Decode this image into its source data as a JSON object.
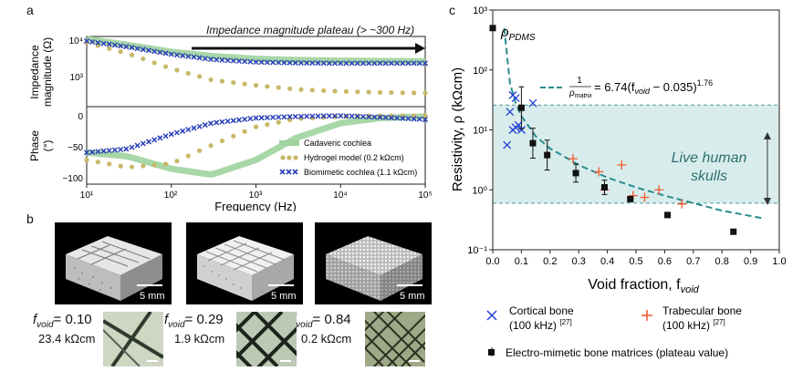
{
  "panel_a": {
    "letter": "a",
    "annotation": "Impedance magnitude plateau (> ~300 Hz)",
    "top_ylabel_line1": "Impedance",
    "top_ylabel_line2": "magnitude (Ω)",
    "bottom_ylabel_line1": "Phase",
    "bottom_ylabel_line2": "(°)",
    "xlabel": "Frequency (Hz)",
    "top_yticks": [
      "10⁴",
      "10³"
    ],
    "bottom_yticks": [
      "0",
      "−50",
      "−100"
    ],
    "xticks": [
      "10¹",
      "10²",
      "10³",
      "10⁴",
      "10⁵"
    ],
    "legend": [
      "Cadaveric cochlea",
      "Hydrogel model (0.2 kΩcm)",
      "Biomimetic cochlea (1.1 kΩcm)"
    ],
    "colors": {
      "cadaveric": "#9fd39f",
      "hydrogel": "#c8b868",
      "biomimetic": "#2a3fb8",
      "arrow": "#111111"
    }
  },
  "panel_b": {
    "letter": "b",
    "scale_label": "5 mm",
    "samples": [
      {
        "fvoid_label": "= 0.10",
        "resistivity": "23.4 kΩcm"
      },
      {
        "fvoid_label": "= 0.29",
        "resistivity": "1.9 kΩcm"
      },
      {
        "fvoid_label": "= 0.84",
        "resistivity": "0.2 kΩcm"
      }
    ],
    "fvoid_symbol": "f",
    "fvoid_sub": "void"
  },
  "panel_c": {
    "letter": "c",
    "rho_pdms": "ρ",
    "rho_pdms_sub": "PDMS",
    "equation_num": "1",
    "equation_den": "ρ",
    "equation_den_sub": "matrix",
    "equation_rhs": "= 6.74(f",
    "equation_rhs_sub": "void",
    "equation_rhs_tail": " − 0.035)",
    "equation_exp": "1.76",
    "shade_label_1": "Live human",
    "shade_label_2": "skulls",
    "ylabel": "Resistivity, ρ (kΩcm)",
    "xlabel": "Void fraction, f",
    "xlabel_sub": "void",
    "yticks": [
      "10³",
      "10²",
      "10¹",
      "10⁰",
      "10⁻¹"
    ],
    "xticks": [
      "0.0",
      "0.1",
      "0.2",
      "0.3",
      "0.4",
      "0.5",
      "0.6",
      "0.7",
      "0.8",
      "0.9",
      "1.0"
    ],
    "legend_cortical_1": "Cortical bone",
    "legend_cortical_2": "(100 kHz)",
    "legend_trabecular_1": "Trabecular bone",
    "legend_trabecular_2": "(100 kHz)",
    "ref": "[27]",
    "legend_matrices": "Electro-mimetic bone matrices (plateau value)",
    "colors": {
      "cortical": "#1f3fd6",
      "trabecular": "#f0582a",
      "matrices": "#111111",
      "fit": "#2a8c8c",
      "shade": "#d8ecec",
      "shade_line": "#4b9a9a"
    }
  },
  "chart_data": [
    {
      "type": "line",
      "title": "",
      "xlabel": "Frequency (Hz)",
      "ylabel": "Impedance magnitude (Ω)",
      "xscale": "log",
      "yscale": "log",
      "xlim": [
        10,
        100000
      ],
      "ylim": [
        100,
        10000
      ],
      "x": [
        10,
        30,
        100,
        300,
        1000,
        3000,
        10000,
        30000,
        100000
      ],
      "series": [
        {
          "name": "Cadaveric cochlea",
          "values": [
            9500,
            6400,
            4000,
            3000,
            2500,
            2300,
            2200,
            2150,
            2100
          ]
        },
        {
          "name": "Hydrogel model (0.2 kΩcm)",
          "values": [
            7500,
            3600,
            1300,
            600,
            420,
            320,
            280,
            260,
            250
          ]
        },
        {
          "name": "Biomimetic cochlea (1.1 kΩcm)",
          "values": [
            8200,
            5600,
            3400,
            2400,
            2000,
            1900,
            1850,
            1850,
            1850
          ]
        }
      ]
    },
    {
      "type": "line",
      "title": "",
      "xlabel": "Frequency (Hz)",
      "ylabel": "Phase (°)",
      "xscale": "log",
      "xlim": [
        10,
        100000
      ],
      "ylim": [
        -100,
        0
      ],
      "x": [
        10,
        30,
        100,
        300,
        1000,
        3000,
        10000,
        30000,
        100000
      ],
      "series": [
        {
          "name": "Cadaveric cochlea",
          "values": [
            -50,
            -55,
            -72,
            -80,
            -60,
            -30,
            -10,
            -3,
            -1
          ]
        },
        {
          "name": "Hydrogel model (0.2 kΩcm)",
          "values": [
            -60,
            -70,
            -65,
            -40,
            -15,
            -4,
            -1,
            0,
            0
          ]
        },
        {
          "name": "Biomimetic cochlea (1.1 kΩcm)",
          "values": [
            -50,
            -45,
            -25,
            -10,
            -3,
            -1,
            0,
            -2,
            -5
          ]
        }
      ]
    },
    {
      "type": "scatter",
      "title": "",
      "xlabel": "Void fraction, f_void",
      "ylabel": "Resistivity, ρ (kΩcm)",
      "yscale": "log",
      "xlim": [
        0.0,
        1.0
      ],
      "ylim": [
        0.1,
        1000
      ],
      "shaded_band": [
        0.6,
        26
      ],
      "series": [
        {
          "name": "Cortical bone (100 kHz) [27]",
          "x": [
            0.05,
            0.06,
            0.07,
            0.08,
            0.09,
            0.1,
            0.14,
            0.07,
            0.08
          ],
          "y": [
            5.6,
            20,
            38,
            34,
            12,
            10,
            28,
            10,
            11
          ]
        },
        {
          "name": "Trabecular bone (100 kHz) [27]",
          "x": [
            0.28,
            0.37,
            0.39,
            0.45,
            0.49,
            0.53,
            0.58,
            0.66
          ],
          "y": [
            3.3,
            2.0,
            1.0,
            2.6,
            0.8,
            0.75,
            1.0,
            0.58
          ]
        },
        {
          "name": "Electro-mimetic bone matrices (plateau value)",
          "x": [
            0.0,
            0.1,
            0.14,
            0.19,
            0.29,
            0.39,
            0.48,
            0.61,
            0.84
          ],
          "y": [
            500,
            23.4,
            6.0,
            3.8,
            1.9,
            1.1,
            0.7,
            0.38,
            0.2
          ]
        },
        {
          "name": "fit",
          "x": [
            0.04,
            0.06,
            0.08,
            0.1,
            0.15,
            0.2,
            0.3,
            0.4,
            0.5,
            0.6,
            0.7,
            0.8,
            0.95
          ],
          "y": [
            500,
            60,
            28,
            17,
            7.8,
            4.9,
            2.6,
            1.6,
            1.1,
            0.8,
            0.6,
            0.45,
            0.33
          ]
        }
      ]
    }
  ]
}
